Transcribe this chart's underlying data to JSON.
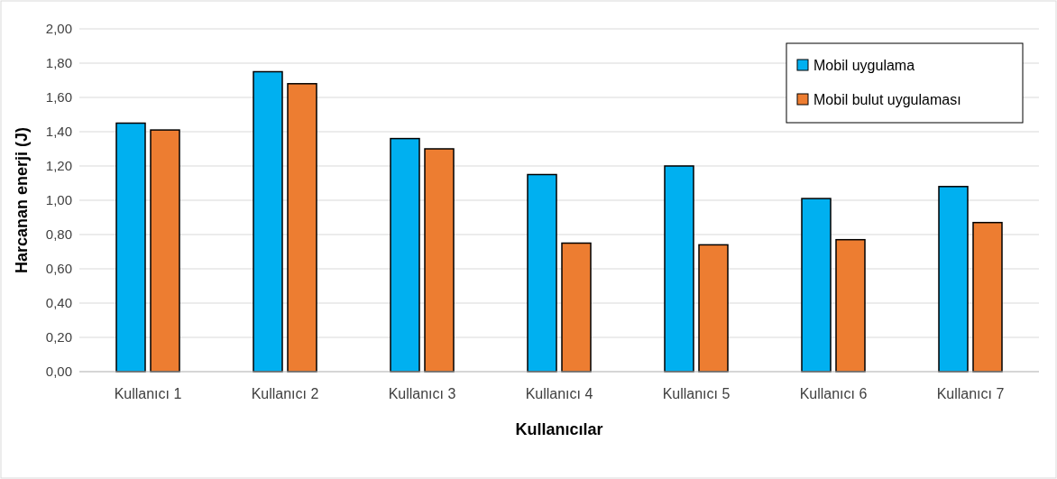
{
  "chart_data": {
    "type": "bar",
    "xlabel": "Kullanıcılar",
    "ylabel": "Harcanan enerji (J)",
    "categories": [
      "Kullanıcı 1",
      "Kullanıcı 2",
      "Kullanıcı 3",
      "Kullanıcı 4",
      "Kullanıcı 5",
      "Kullanıcı 6",
      "Kullanıcı 7"
    ],
    "series": [
      {
        "name": "Mobil uygulama",
        "color": "#00b0f0",
        "values": [
          1.45,
          1.75,
          1.36,
          1.15,
          1.2,
          1.01,
          1.08
        ]
      },
      {
        "name": "Mobil bulut uygulaması",
        "color": "#ed7d31",
        "values": [
          1.41,
          1.68,
          1.3,
          0.75,
          0.74,
          0.77,
          0.87
        ]
      }
    ],
    "ylim": [
      0,
      2
    ],
    "yticks": [
      {
        "value": 0,
        "label": "0,00"
      },
      {
        "value": 0.2,
        "label": "0,20"
      },
      {
        "value": 0.4,
        "label": "0,40"
      },
      {
        "value": 0.6,
        "label": "0,60"
      },
      {
        "value": 0.8,
        "label": "0,80"
      },
      {
        "value": 1,
        "label": "1,00"
      },
      {
        "value": 1.2,
        "label": "1,20"
      },
      {
        "value": 1.4,
        "label": "1,40"
      },
      {
        "value": 1.6,
        "label": "1,60"
      },
      {
        "value": 1.8,
        "label": "1,80"
      },
      {
        "value": 2,
        "label": "2,00"
      }
    ],
    "grid": "y",
    "legend": "top right"
  }
}
